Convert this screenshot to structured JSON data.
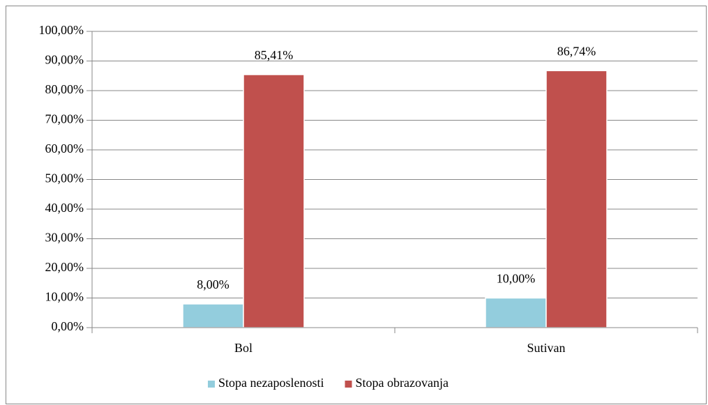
{
  "chart_data": {
    "type": "bar",
    "categories": [
      "Bol",
      "Sutivan"
    ],
    "series": [
      {
        "name": "Stopa nezaposlenosti",
        "color": "#93cddd",
        "values": [
          8,
          10
        ],
        "value_labels": [
          "8,00%",
          "10,00%"
        ]
      },
      {
        "name": "Stopa obrazovanja",
        "color": "#c0504d",
        "values": [
          85.41,
          86.74
        ],
        "value_labels": [
          "85,41%",
          "86,74%"
        ]
      }
    ],
    "ylim": [
      0,
      100
    ],
    "yticks": [
      {
        "value": 0,
        "label": "0,00%"
      },
      {
        "value": 10,
        "label": "10,00%"
      },
      {
        "value": 20,
        "label": "20,00%"
      },
      {
        "value": 30,
        "label": "30,00%"
      },
      {
        "value": 40,
        "label": "40,00%"
      },
      {
        "value": 50,
        "label": "50,00%"
      },
      {
        "value": 60,
        "label": "60,00%"
      },
      {
        "value": 70,
        "label": "70,00%"
      },
      {
        "value": 80,
        "label": "80,00%"
      },
      {
        "value": 90,
        "label": "90,00%"
      },
      {
        "value": 100,
        "label": "100,00%"
      }
    ],
    "grid": true,
    "legend": "bottom"
  }
}
